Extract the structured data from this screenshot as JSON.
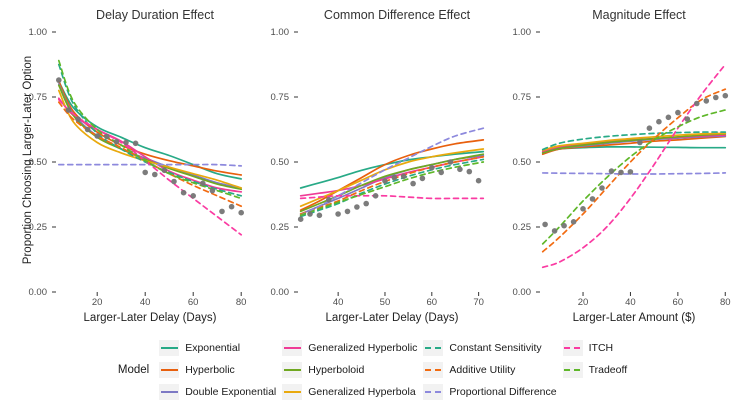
{
  "figure": {
    "y_axis_title": "Proportion Choosing Larger-Later Option",
    "colors": {
      "exponential": "#28AA87",
      "hyperbolic": "#E8600E",
      "double_exponential": "#7D79C4",
      "generalized_hyperbolic": "#EF3C96",
      "hyperboloid": "#70A821",
      "generalized_hyperbola": "#E9A90D",
      "constant_sensitivity": "#28AA87",
      "additive_utility": "#F26B11",
      "proportional_difference": "#8D89DD",
      "itch": "#FA3BA2",
      "tradeoff": "#5FB72A",
      "observed_points": "#757575",
      "tick_mark": "#333333"
    }
  },
  "legend": {
    "title": "Model",
    "columns": [
      [
        {
          "label": "Exponential",
          "color": "#28AA87",
          "dashed": false
        },
        {
          "label": "Hyperbolic",
          "color": "#E8600E",
          "dashed": false
        },
        {
          "label": "Double Exponential",
          "color": "#7D79C4",
          "dashed": false
        }
      ],
      [
        {
          "label": "Generalized Hyperbolic",
          "color": "#EF3C96",
          "dashed": false
        },
        {
          "label": "Hyperboloid",
          "color": "#70A821",
          "dashed": false
        },
        {
          "label": "Generalized Hyperbola",
          "color": "#E9A90D",
          "dashed": false
        }
      ],
      [
        {
          "label": "Constant Sensitivity",
          "color": "#28AA87",
          "dashed": true
        },
        {
          "label": "Additive Utility",
          "color": "#F26B11",
          "dashed": true
        },
        {
          "label": "Proportional Difference",
          "color": "#8D89DD",
          "dashed": true
        }
      ],
      [
        {
          "label": "ITCH",
          "color": "#FA3BA2",
          "dashed": true
        },
        {
          "label": "Tradeoff",
          "color": "#5FB72A",
          "dashed": true
        }
      ]
    ]
  },
  "chart_data": [
    {
      "type": "line",
      "title": "Delay Duration Effect",
      "xlabel": "Larger-Later Delay (Days)",
      "ylabel": "Proportion Choosing Larger-Later Option",
      "xlim": [
        2,
        82
      ],
      "ylim": [
        0,
        1
      ],
      "x_ticks": [
        20,
        40,
        60,
        80
      ],
      "y_ticks": [
        0,
        0.25,
        0.5,
        0.75,
        1
      ],
      "y_tick_labels": [
        "0.00",
        "0.25",
        "0.50",
        "0.75",
        "1.00"
      ],
      "x": [
        4,
        10,
        20,
        30,
        40,
        50,
        60,
        70,
        80
      ],
      "series": [
        {
          "name": "Exponential",
          "color": "#28AA87",
          "dashed": false,
          "values": [
            0.81,
            0.71,
            0.635,
            0.595,
            0.555,
            0.525,
            0.49,
            0.455,
            0.435
          ]
        },
        {
          "name": "Hyperbolic",
          "color": "#E8600E",
          "dashed": false,
          "values": [
            0.81,
            0.695,
            0.615,
            0.565,
            0.53,
            0.505,
            0.485,
            0.465,
            0.45
          ]
        },
        {
          "name": "Double Exponential",
          "color": "#7D79C4",
          "dashed": false,
          "values": [
            0.8,
            0.685,
            0.6,
            0.55,
            0.515,
            0.48,
            0.45,
            0.42,
            0.4
          ]
        },
        {
          "name": "Generalized Hyperbolic",
          "color": "#EF3C96",
          "dashed": false,
          "values": [
            0.745,
            0.68,
            0.625,
            0.58,
            0.52,
            0.465,
            0.43,
            0.4,
            0.385
          ]
        },
        {
          "name": "Hyperboloid",
          "color": "#70A821",
          "dashed": false,
          "values": [
            0.795,
            0.68,
            0.595,
            0.55,
            0.51,
            0.475,
            0.445,
            0.415,
            0.395
          ]
        },
        {
          "name": "Generalized Hyperbola",
          "color": "#E9A90D",
          "dashed": false,
          "values": [
            0.775,
            0.655,
            0.575,
            0.535,
            0.505,
            0.48,
            0.455,
            0.43,
            0.4
          ]
        },
        {
          "name": "Constant Sensitivity",
          "color": "#28AA87",
          "dashed": true,
          "values": [
            0.875,
            0.725,
            0.61,
            0.55,
            0.5,
            0.46,
            0.425,
            0.395,
            0.37
          ]
        },
        {
          "name": "Additive Utility",
          "color": "#F26B11",
          "dashed": true,
          "values": [
            0.73,
            0.665,
            0.6,
            0.555,
            0.505,
            0.455,
            0.41,
            0.37,
            0.33
          ]
        },
        {
          "name": "Proportional Difference",
          "color": "#8D89DD",
          "dashed": true,
          "values": [
            0.49,
            0.49,
            0.49,
            0.49,
            0.49,
            0.49,
            0.49,
            0.49,
            0.485
          ]
        },
        {
          "name": "ITCH",
          "color": "#FA3BA2",
          "dashed": true,
          "values": [
            0.74,
            0.685,
            0.625,
            0.575,
            0.505,
            0.43,
            0.36,
            0.29,
            0.22
          ]
        },
        {
          "name": "Tradeoff",
          "color": "#5FB72A",
          "dashed": true,
          "values": [
            0.89,
            0.735,
            0.625,
            0.565,
            0.505,
            0.455,
            0.42,
            0.39,
            0.36
          ]
        }
      ],
      "observed_points": [
        [
          4,
          0.815
        ],
        [
          8,
          0.7
        ],
        [
          12,
          0.665
        ],
        [
          16,
          0.625
        ],
        [
          20,
          0.6
        ],
        [
          24,
          0.598
        ],
        [
          28,
          0.578
        ],
        [
          32,
          0.575
        ],
        [
          36,
          0.572
        ],
        [
          40,
          0.46
        ],
        [
          44,
          0.452
        ],
        [
          48,
          0.468
        ],
        [
          52,
          0.425
        ],
        [
          56,
          0.382
        ],
        [
          60,
          0.37
        ],
        [
          64,
          0.418
        ],
        [
          68,
          0.39
        ],
        [
          72,
          0.31
        ],
        [
          76,
          0.328
        ],
        [
          80,
          0.305
        ]
      ]
    },
    {
      "type": "line",
      "title": "Common Difference Effect",
      "xlabel": "Larger-Later Delay (Days)",
      "ylabel": "Proportion Choosing Larger-Later Option",
      "xlim": [
        31,
        72
      ],
      "ylim": [
        0,
        1
      ],
      "x_ticks": [
        40,
        50,
        60,
        70
      ],
      "y_ticks": [
        0,
        0.25,
        0.5,
        0.75,
        1
      ],
      "y_tick_labels": [
        "0.00",
        "0.25",
        "0.50",
        "0.75",
        "1.00"
      ],
      "x": [
        32,
        36,
        40,
        45,
        50,
        55,
        60,
        65,
        71
      ],
      "series": [
        {
          "name": "Exponential",
          "color": "#28AA87",
          "dashed": false,
          "values": [
            0.4,
            0.42,
            0.44,
            0.468,
            0.49,
            0.508,
            0.52,
            0.53,
            0.54
          ]
        },
        {
          "name": "Hyperbolic",
          "color": "#E8600E",
          "dashed": false,
          "values": [
            0.315,
            0.35,
            0.39,
            0.44,
            0.49,
            0.525,
            0.55,
            0.57,
            0.585
          ]
        },
        {
          "name": "Double Exponential",
          "color": "#7D79C4",
          "dashed": false,
          "values": [
            0.3,
            0.33,
            0.36,
            0.4,
            0.44,
            0.47,
            0.49,
            0.51,
            0.525
          ]
        },
        {
          "name": "Generalized Hyperbolic",
          "color": "#EF3C96",
          "dashed": false,
          "values": [
            0.37,
            0.38,
            0.39,
            0.41,
            0.435,
            0.46,
            0.48,
            0.5,
            0.52
          ]
        },
        {
          "name": "Hyperboloid",
          "color": "#70A821",
          "dashed": false,
          "values": [
            0.31,
            0.34,
            0.37,
            0.41,
            0.445,
            0.47,
            0.49,
            0.51,
            0.53
          ]
        },
        {
          "name": "Generalized Hyperbola",
          "color": "#E9A90D",
          "dashed": false,
          "values": [
            0.33,
            0.36,
            0.39,
            0.43,
            0.47,
            0.5,
            0.52,
            0.535,
            0.55
          ]
        },
        {
          "name": "Constant Sensitivity",
          "color": "#28AA87",
          "dashed": true,
          "values": [
            0.29,
            0.315,
            0.34,
            0.38,
            0.415,
            0.445,
            0.47,
            0.49,
            0.51
          ]
        },
        {
          "name": "Additive Utility",
          "color": "#F26B11",
          "dashed": true,
          "values": [
            0.3,
            0.325,
            0.35,
            0.39,
            0.425,
            0.455,
            0.48,
            0.5,
            0.52
          ]
        },
        {
          "name": "Proportional Difference",
          "color": "#8D89DD",
          "dashed": true,
          "values": [
            0.295,
            0.33,
            0.37,
            0.42,
            0.47,
            0.515,
            0.56,
            0.6,
            0.63
          ]
        },
        {
          "name": "ITCH",
          "color": "#FA3BA2",
          "dashed": true,
          "values": [
            0.36,
            0.365,
            0.37,
            0.37,
            0.37,
            0.365,
            0.36,
            0.36,
            0.36
          ]
        },
        {
          "name": "Tradeoff",
          "color": "#5FB72A",
          "dashed": true,
          "values": [
            0.295,
            0.32,
            0.345,
            0.375,
            0.405,
            0.435,
            0.46,
            0.48,
            0.5
          ]
        }
      ],
      "observed_points": [
        [
          32,
          0.28
        ],
        [
          34,
          0.3
        ],
        [
          36,
          0.295
        ],
        [
          38,
          0.355
        ],
        [
          40,
          0.3
        ],
        [
          42,
          0.31
        ],
        [
          44,
          0.327
        ],
        [
          46,
          0.34
        ],
        [
          48,
          0.37
        ],
        [
          50,
          0.427
        ],
        [
          52,
          0.44
        ],
        [
          54,
          0.445
        ],
        [
          56,
          0.417
        ],
        [
          58,
          0.437
        ],
        [
          60,
          0.478
        ],
        [
          62,
          0.46
        ],
        [
          64,
          0.5
        ],
        [
          66,
          0.472
        ],
        [
          68,
          0.463
        ],
        [
          70,
          0.428
        ]
      ]
    },
    {
      "type": "line",
      "title": "Magnitude Effect",
      "xlabel": "Larger-Later Amount ($)",
      "ylabel": "Proportion Choosing Larger-Later Option",
      "xlim": [
        1,
        82
      ],
      "ylim": [
        0,
        1
      ],
      "x_ticks": [
        20,
        40,
        60,
        80
      ],
      "y_ticks": [
        0,
        0.25,
        0.5,
        0.75,
        1
      ],
      "y_tick_labels": [
        "0.00",
        "0.25",
        "0.50",
        "0.75",
        "1.00"
      ],
      "x": [
        3,
        10,
        20,
        30,
        40,
        50,
        60,
        70,
        80
      ],
      "series": [
        {
          "name": "Exponential",
          "color": "#28AA87",
          "dashed": false,
          "values": [
            0.535,
            0.55,
            0.555,
            0.558,
            0.558,
            0.557,
            0.556,
            0.555,
            0.555
          ]
        },
        {
          "name": "Hyperbolic",
          "color": "#E8600E",
          "dashed": false,
          "values": [
            0.53,
            0.55,
            0.558,
            0.565,
            0.572,
            0.58,
            0.585,
            0.592,
            0.598
          ]
        },
        {
          "name": "Double Exponential",
          "color": "#7D79C4",
          "dashed": false,
          "values": [
            0.535,
            0.552,
            0.562,
            0.572,
            0.58,
            0.587,
            0.592,
            0.597,
            0.6
          ]
        },
        {
          "name": "Generalized Hyperbolic",
          "color": "#EF3C96",
          "dashed": false,
          "values": [
            0.54,
            0.558,
            0.57,
            0.578,
            0.585,
            0.59,
            0.595,
            0.6,
            0.603
          ]
        },
        {
          "name": "Hyperboloid",
          "color": "#70A821",
          "dashed": false,
          "values": [
            0.535,
            0.552,
            0.565,
            0.575,
            0.583,
            0.59,
            0.597,
            0.603,
            0.608
          ]
        },
        {
          "name": "Generalized Hyperbola",
          "color": "#E9A90D",
          "dashed": false,
          "values": [
            0.545,
            0.562,
            0.572,
            0.582,
            0.59,
            0.597,
            0.603,
            0.608,
            0.61
          ]
        },
        {
          "name": "Constant Sensitivity",
          "color": "#28AA87",
          "dashed": true,
          "values": [
            0.548,
            0.572,
            0.588,
            0.598,
            0.605,
            0.61,
            0.613,
            0.615,
            0.615
          ]
        },
        {
          "name": "Additive Utility",
          "color": "#F26B11",
          "dashed": true,
          "values": [
            0.155,
            0.21,
            0.3,
            0.4,
            0.5,
            0.59,
            0.67,
            0.74,
            0.78
          ]
        },
        {
          "name": "Proportional Difference",
          "color": "#8D89DD",
          "dashed": true,
          "values": [
            0.458,
            0.457,
            0.456,
            0.455,
            0.454,
            0.454,
            0.455,
            0.456,
            0.458
          ]
        },
        {
          "name": "ITCH",
          "color": "#FA3BA2",
          "dashed": true,
          "values": [
            0.095,
            0.115,
            0.17,
            0.25,
            0.36,
            0.49,
            0.63,
            0.76,
            0.875
          ]
        },
        {
          "name": "Tradeoff",
          "color": "#5FB72A",
          "dashed": true,
          "values": [
            0.185,
            0.25,
            0.35,
            0.44,
            0.52,
            0.585,
            0.635,
            0.675,
            0.7
          ]
        }
      ],
      "observed_points": [
        [
          4,
          0.26
        ],
        [
          8,
          0.235
        ],
        [
          12,
          0.255
        ],
        [
          16,
          0.27
        ],
        [
          20,
          0.32
        ],
        [
          24,
          0.358
        ],
        [
          28,
          0.4
        ],
        [
          32,
          0.465
        ],
        [
          36,
          0.46
        ],
        [
          40,
          0.462
        ],
        [
          44,
          0.575
        ],
        [
          48,
          0.63
        ],
        [
          52,
          0.655
        ],
        [
          56,
          0.672
        ],
        [
          60,
          0.69
        ],
        [
          64,
          0.665
        ],
        [
          68,
          0.725
        ],
        [
          72,
          0.735
        ],
        [
          76,
          0.748
        ],
        [
          80,
          0.755
        ]
      ]
    }
  ]
}
